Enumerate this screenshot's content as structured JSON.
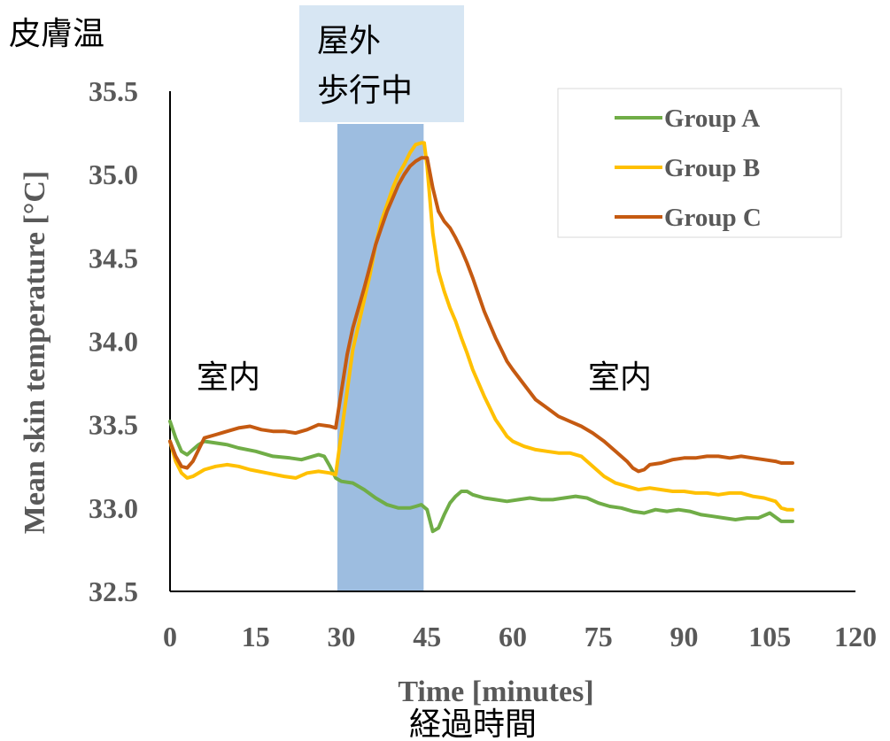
{
  "annotations": {
    "top_left_jp": "皮膚温",
    "outdoor_jp_line1": "屋外",
    "outdoor_jp_line2": "歩行中",
    "indoor_left_jp": "室内",
    "indoor_right_jp": "室内",
    "bottom_jp": "経過時間"
  },
  "colors": {
    "outdoor_band": "#9dbde0",
    "outdoor_label_bg": "#d7e6f3",
    "axis": "#000000",
    "label_gray": "#595959"
  },
  "chart_data": {
    "type": "line",
    "title": "",
    "xlabel": "Time [minutes]",
    "ylabel": "Mean skin temperature [°C]",
    "xlim": [
      0,
      120
    ],
    "ylim": [
      32.5,
      35.5
    ],
    "xticks": [
      0,
      15,
      30,
      45,
      60,
      75,
      90,
      105,
      120
    ],
    "yticks": [
      32.5,
      33.0,
      33.5,
      34.0,
      34.5,
      35.0,
      35.5
    ],
    "ytick_labels": [
      "32.5",
      "33.0",
      "33.5",
      "34.0",
      "34.5",
      "35.0",
      "35.5"
    ],
    "grid": false,
    "legend": "top-right",
    "shaded_interval": [
      29.3,
      44.4
    ],
    "series": [
      {
        "name": "Group A",
        "color": "#70ad47",
        "points": [
          [
            0,
            33.52
          ],
          [
            1,
            33.42
          ],
          [
            2,
            33.34
          ],
          [
            3,
            33.32
          ],
          [
            4,
            33.35
          ],
          [
            5,
            33.38
          ],
          [
            6,
            33.4
          ],
          [
            8,
            33.39
          ],
          [
            10,
            33.38
          ],
          [
            12,
            33.36
          ],
          [
            15,
            33.34
          ],
          [
            18,
            33.31
          ],
          [
            21,
            33.3
          ],
          [
            23,
            33.29
          ],
          [
            25,
            33.31
          ],
          [
            26,
            33.32
          ],
          [
            27,
            33.31
          ],
          [
            28,
            33.25
          ],
          [
            29,
            33.18
          ],
          [
            30,
            33.16
          ],
          [
            32,
            33.15
          ],
          [
            34,
            33.11
          ],
          [
            36,
            33.06
          ],
          [
            38,
            33.02
          ],
          [
            40,
            33.0
          ],
          [
            42,
            33.0
          ],
          [
            43,
            33.01
          ],
          [
            44,
            33.02
          ],
          [
            45,
            32.99
          ],
          [
            46,
            32.86
          ],
          [
            47,
            32.88
          ],
          [
            48,
            32.96
          ],
          [
            49,
            33.03
          ],
          [
            50,
            33.07
          ],
          [
            51,
            33.1
          ],
          [
            52,
            33.1
          ],
          [
            53,
            33.08
          ],
          [
            55,
            33.06
          ],
          [
            57,
            33.05
          ],
          [
            59,
            33.04
          ],
          [
            61,
            33.05
          ],
          [
            63,
            33.06
          ],
          [
            65,
            33.05
          ],
          [
            67,
            33.05
          ],
          [
            69,
            33.06
          ],
          [
            71,
            33.07
          ],
          [
            73,
            33.06
          ],
          [
            75,
            33.03
          ],
          [
            77,
            33.01
          ],
          [
            79,
            33.0
          ],
          [
            81,
            32.98
          ],
          [
            83,
            32.97
          ],
          [
            85,
            32.99
          ],
          [
            87,
            32.98
          ],
          [
            89,
            32.99
          ],
          [
            91,
            32.98
          ],
          [
            93,
            32.96
          ],
          [
            95,
            32.95
          ],
          [
            97,
            32.94
          ],
          [
            99,
            32.93
          ],
          [
            101,
            32.94
          ],
          [
            103,
            32.94
          ],
          [
            105,
            32.97
          ],
          [
            107,
            32.92
          ],
          [
            109,
            32.92
          ]
        ]
      },
      {
        "name": "Group B",
        "color": "#ffc000",
        "points": [
          [
            0,
            33.4
          ],
          [
            1,
            33.28
          ],
          [
            2,
            33.21
          ],
          [
            3,
            33.18
          ],
          [
            4,
            33.19
          ],
          [
            6,
            33.23
          ],
          [
            8,
            33.25
          ],
          [
            10,
            33.26
          ],
          [
            12,
            33.25
          ],
          [
            14,
            33.23
          ],
          [
            17,
            33.21
          ],
          [
            20,
            33.19
          ],
          [
            22,
            33.18
          ],
          [
            24,
            33.21
          ],
          [
            26,
            33.22
          ],
          [
            28,
            33.21
          ],
          [
            29,
            33.2
          ],
          [
            30,
            33.45
          ],
          [
            31,
            33.7
          ],
          [
            32,
            33.95
          ],
          [
            33,
            34.1
          ],
          [
            34,
            34.25
          ],
          [
            35,
            34.4
          ],
          [
            36,
            34.58
          ],
          [
            37,
            34.72
          ],
          [
            38,
            34.82
          ],
          [
            39,
            34.92
          ],
          [
            40,
            35.0
          ],
          [
            41,
            35.06
          ],
          [
            42,
            35.13
          ],
          [
            43,
            35.18
          ],
          [
            44,
            35.19
          ],
          [
            44.5,
            35.19
          ],
          [
            45,
            35.05
          ],
          [
            46,
            34.65
          ],
          [
            47,
            34.42
          ],
          [
            48,
            34.3
          ],
          [
            49,
            34.2
          ],
          [
            50,
            34.12
          ],
          [
            51,
            34.02
          ],
          [
            52,
            33.93
          ],
          [
            53,
            33.83
          ],
          [
            54,
            33.75
          ],
          [
            55,
            33.67
          ],
          [
            56,
            33.6
          ],
          [
            57,
            33.53
          ],
          [
            58,
            33.48
          ],
          [
            59,
            33.43
          ],
          [
            60,
            33.4
          ],
          [
            62,
            33.37
          ],
          [
            64,
            33.35
          ],
          [
            66,
            33.34
          ],
          [
            68,
            33.33
          ],
          [
            70,
            33.33
          ],
          [
            72,
            33.31
          ],
          [
            74,
            33.25
          ],
          [
            76,
            33.19
          ],
          [
            78,
            33.15
          ],
          [
            80,
            33.13
          ],
          [
            82,
            33.11
          ],
          [
            84,
            33.12
          ],
          [
            86,
            33.11
          ],
          [
            88,
            33.1
          ],
          [
            90,
            33.1
          ],
          [
            92,
            33.09
          ],
          [
            94,
            33.09
          ],
          [
            96,
            33.08
          ],
          [
            98,
            33.09
          ],
          [
            100,
            33.09
          ],
          [
            102,
            33.07
          ],
          [
            104,
            33.06
          ],
          [
            106,
            33.04
          ],
          [
            107,
            33.0
          ],
          [
            108,
            32.99
          ],
          [
            109,
            32.99
          ]
        ]
      },
      {
        "name": "Group C",
        "color": "#c55a11",
        "points": [
          [
            0,
            33.4
          ],
          [
            1,
            33.31
          ],
          [
            2,
            33.25
          ],
          [
            3,
            33.24
          ],
          [
            4,
            33.28
          ],
          [
            5,
            33.35
          ],
          [
            6,
            33.42
          ],
          [
            8,
            33.44
          ],
          [
            10,
            33.46
          ],
          [
            12,
            33.48
          ],
          [
            14,
            33.49
          ],
          [
            16,
            33.47
          ],
          [
            18,
            33.46
          ],
          [
            20,
            33.46
          ],
          [
            22,
            33.45
          ],
          [
            24,
            33.47
          ],
          [
            26,
            33.5
          ],
          [
            28,
            33.49
          ],
          [
            29,
            33.48
          ],
          [
            30,
            33.7
          ],
          [
            31,
            33.92
          ],
          [
            32,
            34.08
          ],
          [
            33,
            34.2
          ],
          [
            34,
            34.32
          ],
          [
            35,
            34.45
          ],
          [
            36,
            34.58
          ],
          [
            37,
            34.68
          ],
          [
            38,
            34.78
          ],
          [
            39,
            34.86
          ],
          [
            40,
            34.94
          ],
          [
            41,
            35.0
          ],
          [
            42,
            35.05
          ],
          [
            43,
            35.08
          ],
          [
            44,
            35.1
          ],
          [
            45,
            35.1
          ],
          [
            46,
            34.92
          ],
          [
            47,
            34.78
          ],
          [
            48,
            34.72
          ],
          [
            49,
            34.68
          ],
          [
            50,
            34.62
          ],
          [
            51,
            34.55
          ],
          [
            52,
            34.47
          ],
          [
            53,
            34.38
          ],
          [
            54,
            34.28
          ],
          [
            55,
            34.18
          ],
          [
            56,
            34.1
          ],
          [
            57,
            34.02
          ],
          [
            58,
            33.95
          ],
          [
            59,
            33.88
          ],
          [
            60,
            33.83
          ],
          [
            62,
            33.74
          ],
          [
            64,
            33.65
          ],
          [
            66,
            33.6
          ],
          [
            68,
            33.55
          ],
          [
            70,
            33.52
          ],
          [
            72,
            33.49
          ],
          [
            74,
            33.45
          ],
          [
            76,
            33.4
          ],
          [
            78,
            33.34
          ],
          [
            80,
            33.28
          ],
          [
            81,
            33.24
          ],
          [
            82,
            33.22
          ],
          [
            83,
            33.23
          ],
          [
            84,
            33.26
          ],
          [
            86,
            33.27
          ],
          [
            88,
            33.29
          ],
          [
            90,
            33.3
          ],
          [
            92,
            33.3
          ],
          [
            94,
            33.31
          ],
          [
            96,
            33.31
          ],
          [
            98,
            33.3
          ],
          [
            100,
            33.31
          ],
          [
            102,
            33.3
          ],
          [
            104,
            33.29
          ],
          [
            106,
            33.28
          ],
          [
            107,
            33.27
          ],
          [
            109,
            33.27
          ]
        ]
      }
    ]
  }
}
